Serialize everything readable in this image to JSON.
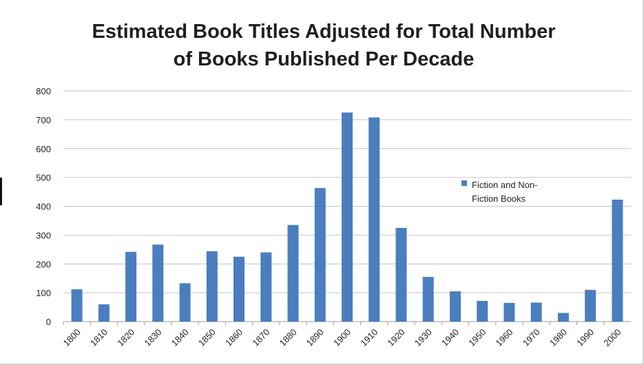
{
  "chart_data": {
    "type": "bar",
    "title_line1": "Estimated Book Titles Adjusted for Total Number",
    "title_line2": "of Books Published Per Decade",
    "categories": [
      "1800",
      "1810",
      "1820",
      "1830",
      "1840",
      "1850",
      "1860",
      "1870",
      "1880",
      "1890",
      "1900",
      "1910",
      "1920",
      "1930",
      "1940",
      "1950",
      "1960",
      "1970",
      "1980",
      "1990",
      "2000"
    ],
    "series": [
      {
        "name": "Fiction and Non-Fiction Books",
        "legend_line1": "Fiction and Non-",
        "legend_line2": "Fiction Books",
        "color": "#4a7ebf",
        "values": [
          112,
          60,
          242,
          267,
          133,
          244,
          225,
          240,
          335,
          463,
          725,
          708,
          325,
          155,
          105,
          72,
          65,
          66,
          30,
          110,
          423
        ]
      }
    ],
    "ylim": [
      0,
      800
    ],
    "yticks": [
      0,
      100,
      200,
      300,
      400,
      500,
      600,
      700,
      800
    ],
    "grid": true,
    "legend_position": "right"
  }
}
